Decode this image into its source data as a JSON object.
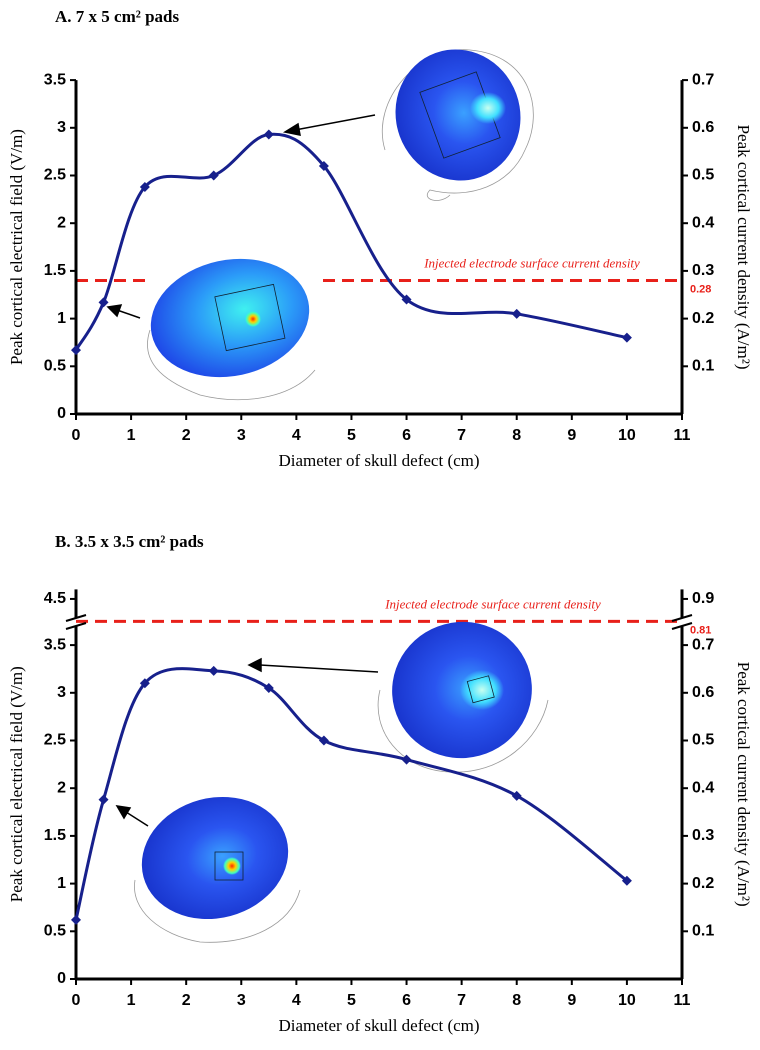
{
  "chart_data": [
    {
      "type": "line",
      "title": "A. 7 x 5 cm² pads",
      "x_label": "Diameter of skull defect  (cm)",
      "y_label": "Peak cortical electrical field (V/m)",
      "y2_label": "Peak cortical current density (A/m²)",
      "x": [
        0,
        0.5,
        1.25,
        2.5,
        3.5,
        4.5,
        6,
        8,
        10
      ],
      "series": [
        {
          "color": "#17208c",
          "values": [
            0.67,
            1.17,
            2.38,
            2.5,
            2.93,
            2.6,
            1.2,
            1.05,
            0.8
          ]
        }
      ],
      "xlim": [
        0,
        11
      ],
      "xticks": [
        0,
        1,
        2,
        3,
        4,
        5,
        6,
        7,
        8,
        9,
        10,
        11
      ],
      "ylim": [
        0,
        3.5
      ],
      "yticks": [
        0,
        0.5,
        1,
        1.5,
        2,
        2.5,
        3,
        3.5
      ],
      "y2lim": [
        0,
        0.7
      ],
      "y2ticks": [
        0.1,
        0.2,
        0.3,
        0.4,
        0.5,
        0.6,
        0.7
      ],
      "reference": {
        "value": 0.28,
        "axis": "y2",
        "label": "Injected electrode surface current density",
        "color": "#e8201a"
      }
    },
    {
      "type": "line",
      "title": "B. 3.5 x 3.5 cm² pads",
      "x_label": "Diameter of skull defect  (cm)",
      "y_label": "Peak cortical electrical field (V/m)",
      "y2_label": "Peak cortical current density (A/m²)",
      "x": [
        0,
        0.5,
        1.25,
        2.5,
        3.5,
        4.5,
        6,
        8,
        10
      ],
      "series": [
        {
          "color": "#17208c",
          "values": [
            0.62,
            1.88,
            3.1,
            3.23,
            3.05,
            2.5,
            2.3,
            1.92,
            1.03
          ]
        }
      ],
      "xlim": [
        0,
        11
      ],
      "xticks": [
        0,
        1,
        2,
        3,
        4,
        5,
        6,
        7,
        8,
        9,
        10,
        11
      ],
      "ylim": [
        0,
        4.6
      ],
      "yticks": [
        0,
        0.5,
        1,
        1.5,
        2,
        2.5,
        3,
        3.5,
        4.5
      ],
      "ybreak": [
        3.7,
        4.3
      ],
      "y2lim": [
        0,
        0.92
      ],
      "y2ticks": [
        0.1,
        0.2,
        0.3,
        0.4,
        0.5,
        0.6,
        0.7,
        0.9
      ],
      "y2break": [
        0.74,
        0.86
      ],
      "reference": {
        "value": 0.81,
        "axis": "y2",
        "label": "Injected electrode surface current density",
        "color": "#e8201a"
      }
    }
  ]
}
